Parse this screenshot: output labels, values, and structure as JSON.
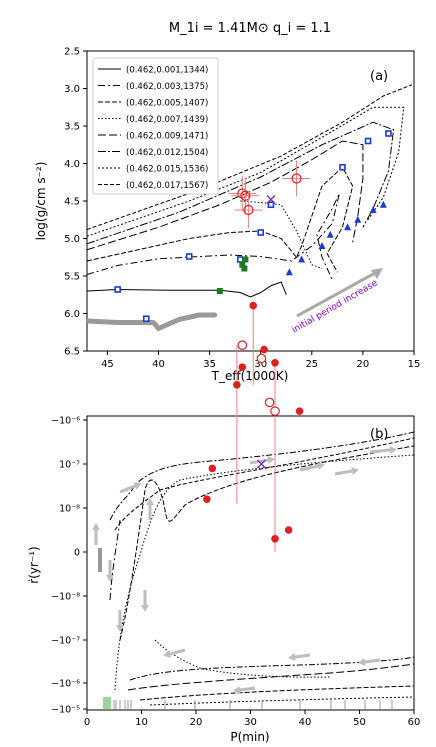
{
  "figure": {
    "title": "M_1i = 1.41M⊙ q_i = 1.1"
  },
  "chart_data": [
    {
      "panel_label": "(a)",
      "type": "line",
      "xlabel": "T_eff(1000K)",
      "ylabel": "log(g/cm s⁻²)",
      "xlim": [
        47,
        15
      ],
      "ylim": [
        6.5,
        2.5
      ],
      "xticks": [
        "45",
        "40",
        "35",
        "30",
        "25",
        "20",
        "15"
      ],
      "yticks": [
        "2.5",
        "3.0",
        "3.5",
        "4.0",
        "4.5",
        "5.0",
        "5.5",
        "6.0",
        "6.5"
      ],
      "legend_position": "top-left",
      "series": [
        {
          "name": "(0.462,0.001,1344)",
          "dash": "",
          "points": [
            [
              47,
              5.7
            ],
            [
              44,
              5.68
            ],
            [
              39,
              5.69
            ],
            [
              34,
              5.69
            ],
            [
              32,
              5.72
            ],
            [
              31,
              5.78
            ],
            [
              30,
              5.72
            ],
            [
              29,
              5.63
            ],
            [
              28,
              5.58
            ],
            [
              27.5,
              5.75
            ]
          ]
        },
        {
          "name": "(0.462,0.003,1375)",
          "dash": "7 3 2 3",
          "points": [
            [
              47,
              5.48
            ],
            [
              44,
              5.36
            ],
            [
              40,
              5.27
            ],
            [
              36,
              5.24
            ],
            [
              33,
              5.22
            ],
            [
              30,
              5.24
            ],
            [
              27,
              5.3
            ],
            [
              25,
              5.1
            ],
            [
              23,
              4.8
            ],
            [
              22.3,
              4.4
            ],
            [
              23,
              4.6
            ],
            [
              24.5,
              4.95
            ],
            [
              24,
              5.25
            ],
            [
              23,
              5.55
            ]
          ]
        },
        {
          "name": "(0.462,0.005,1407)",
          "dash": "5 2",
          "points": [
            [
              47,
              5.3
            ],
            [
              42,
              5.15
            ],
            [
              37,
              5.0
            ],
            [
              33,
              4.92
            ],
            [
              30,
              4.9
            ],
            [
              28,
              5.0
            ],
            [
              26.5,
              5.25
            ],
            [
              26,
              5.1
            ],
            [
              24,
              4.3
            ],
            [
              22,
              4.05
            ],
            [
              21,
              4.3
            ],
            [
              22,
              4.85
            ],
            [
              23.5,
              5.2
            ],
            [
              22.5,
              5.45
            ]
          ]
        },
        {
          "name": "(0.462,0.007,1439)",
          "dash": "1.5 2",
          "points": [
            [
              32,
              4.5
            ],
            [
              30,
              4.52
            ],
            [
              28,
              4.55
            ],
            [
              26.5,
              4.9
            ],
            [
              25.5,
              5.2
            ],
            [
              25,
              5.35
            ],
            [
              24,
              5.4
            ]
          ]
        },
        {
          "name": "(0.462,0.009,1471)",
          "dash": "8 3",
          "points": [
            [
              47,
              5.15
            ],
            [
              40,
              4.85
            ],
            [
              34,
              4.55
            ],
            [
              29,
              4.25
            ],
            [
              25,
              3.95
            ],
            [
              22,
              3.7
            ],
            [
              20,
              3.75
            ],
            [
              20,
              4.2
            ],
            [
              20.5,
              4.7
            ],
            [
              21,
              5.05
            ]
          ]
        },
        {
          "name": "(0.462,0.012,1504)",
          "dash": "8 2 2 2",
          "points": [
            [
              47,
              5.07
            ],
            [
              38,
              4.65
            ],
            [
              30,
              4.18
            ],
            [
              24,
              3.75
            ],
            [
              19,
              3.45
            ],
            [
              17,
              3.55
            ],
            [
              17.5,
              4.1
            ],
            [
              19,
              4.6
            ],
            [
              20,
              4.85
            ]
          ]
        },
        {
          "name": "(0.462,0.015,1536)",
          "dash": "2 2",
          "points": [
            [
              47,
              4.97
            ],
            [
              37,
              4.5
            ],
            [
              30,
              4.12
            ],
            [
              24,
              3.65
            ],
            [
              19,
              3.25
            ],
            [
              16,
              3.25
            ],
            [
              16.5,
              3.85
            ],
            [
              18,
              4.45
            ],
            [
              19.5,
              4.75
            ]
          ]
        },
        {
          "name": "(0.462,0.017,1567)",
          "dash": "4 2",
          "points": [
            [
              47,
              4.88
            ],
            [
              36,
              4.35
            ],
            [
              28,
              3.9
            ],
            [
              22,
              3.45
            ],
            [
              18,
              3.1
            ],
            [
              15.2,
              2.95
            ]
          ]
        }
      ],
      "track": [
        [
          47,
          6.1
        ],
        [
          44,
          6.12
        ],
        [
          40.5,
          6.12
        ],
        [
          40,
          6.2
        ],
        [
          38,
          6.08
        ],
        [
          36,
          6.02
        ],
        [
          34.5,
          6.02
        ]
      ],
      "initial_squares": [
        [
          44,
          5.68
        ],
        [
          41.2,
          6.07
        ],
        [
          37,
          5.24
        ],
        [
          32,
          5.28
        ],
        [
          30,
          4.92
        ],
        [
          29,
          4.55
        ],
        [
          22,
          4.05
        ],
        [
          19.5,
          3.7
        ],
        [
          17.5,
          3.6
        ]
      ],
      "triangles": [
        [
          26,
          5.28
        ],
        [
          24,
          5.1
        ],
        [
          23.2,
          4.95
        ],
        [
          21.5,
          4.85
        ],
        [
          20.5,
          4.75
        ],
        [
          19,
          4.62
        ],
        [
          18,
          4.55
        ],
        [
          27.2,
          5.45
        ]
      ],
      "green_squares": [
        [
          34,
          5.7
        ],
        [
          31.8,
          5.35
        ],
        [
          31.6,
          5.4
        ],
        [
          31.5,
          5.28
        ]
      ],
      "observed_open": [
        [
          31.8,
          4.4
        ],
        [
          31.5,
          4.43
        ],
        [
          26.5,
          4.2
        ],
        [
          31.2,
          4.62
        ]
      ],
      "observed_cross": [
        [
          29,
          4.48
        ]
      ],
      "arrow_label": "initial period increase"
    },
    {
      "panel_label": "(b)",
      "type": "line",
      "xlabel": "P(min)",
      "ylabel": "ṙ(yr⁻¹)",
      "xlim": [
        0,
        60
      ],
      "xticks": [
        "0",
        "10",
        "20",
        "30",
        "40",
        "50",
        "60"
      ],
      "yticks": [
        "−10⁻⁶",
        "10⁻⁷",
        "10⁻⁸",
        "0",
        "−10⁻⁸",
        "−10⁻⁷",
        "−10⁻⁶",
        "−10⁻⁵"
      ],
      "observed_filled": [
        [
          27.5,
          -6.8
        ],
        [
          28.5,
          -7.2
        ],
        [
          32.5,
          -7.6
        ],
        [
          34.5,
          -7.3
        ],
        [
          30.5,
          -8.6
        ],
        [
          39,
          -6.2
        ],
        [
          22,
          -4.2
        ],
        [
          23,
          -4.9
        ],
        [
          34.5,
          -3.3
        ],
        [
          37,
          -3.5
        ]
      ],
      "observed_open": [
        [
          28.5,
          -7.7
        ],
        [
          32,
          -7.4
        ],
        [
          33.5,
          -6.4
        ],
        [
          34.5,
          -6.2
        ]
      ],
      "observed_cross": [
        [
          32,
          -5.0
        ]
      ]
    }
  ]
}
